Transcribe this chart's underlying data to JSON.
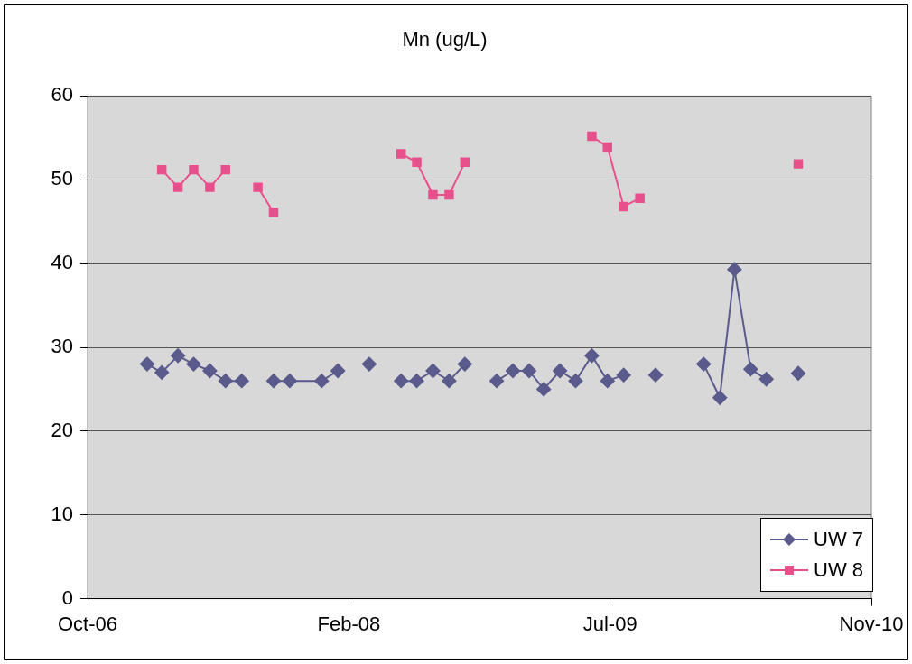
{
  "chart_data": {
    "type": "line",
    "title": "Mn (ug/L)",
    "xlim": [
      "2006-10-10",
      "2010-11-18"
    ],
    "xticks": [
      {
        "value": "2006-10-10",
        "label": "Oct-06"
      },
      {
        "value": "2008-02-22",
        "label": "Feb-08"
      },
      {
        "value": "2009-07-06",
        "label": "Jul-09"
      },
      {
        "value": "2010-11-18",
        "label": "Nov-10"
      }
    ],
    "ylim": [
      0,
      60
    ],
    "yticks": [
      0,
      10,
      20,
      30,
      40,
      50,
      60
    ],
    "grid": "y",
    "legend": "bottom right",
    "line_style": "solid",
    "series": [
      {
        "name": "UW 7",
        "color": "#5a5a8c",
        "marker": "diamond",
        "x": [
          "2007-02-01",
          "2007-03-01",
          "2007-04-01",
          "2007-05-01",
          "2007-06-01",
          "2007-07-01",
          "2007-08-01",
          "2007-09-01",
          "2007-10-01",
          "2007-11-01",
          "2008-01-01",
          "2008-02-01",
          "2008-03-01",
          "2008-04-01",
          "2008-05-01",
          "2008-06-01",
          "2008-07-01",
          "2008-08-01",
          "2008-09-01",
          "2008-10-01",
          "2008-11-01",
          "2008-12-01",
          "2009-01-01",
          "2009-02-01",
          "2009-03-01",
          "2009-04-01",
          "2009-05-01",
          "2009-06-01",
          "2009-07-01",
          "2009-08-01",
          "2009-09-01",
          "2009-10-01",
          "2009-11-01",
          "2010-01-01",
          "2010-02-01",
          "2010-03-01",
          "2010-04-01",
          "2010-05-01",
          "2010-06-01",
          "2010-07-01"
        ],
        "values": [
          28,
          27,
          29,
          28,
          27.2,
          26,
          26,
          null,
          26,
          26,
          26,
          27.2,
          null,
          28,
          null,
          26,
          26,
          27.2,
          26,
          28,
          null,
          26,
          27.2,
          27.2,
          25,
          27.2,
          26,
          29,
          26,
          26.7,
          null,
          26.7,
          null,
          28,
          24,
          39.3,
          27.4,
          26.2,
          null,
          26.9
        ]
      },
      {
        "name": "UW 8",
        "color": "#e8508c",
        "marker": "square",
        "x": [
          "2007-03-01",
          "2007-04-01",
          "2007-05-01",
          "2007-06-01",
          "2007-07-01",
          "2007-08-01",
          "2007-09-01",
          "2007-10-01",
          "2007-11-01",
          "2008-06-01",
          "2008-07-01",
          "2008-08-01",
          "2008-09-01",
          "2008-10-01",
          "2008-11-01",
          "2009-06-01",
          "2009-07-01",
          "2009-08-01",
          "2009-09-01",
          "2009-10-01",
          "2010-07-01"
        ],
        "values": [
          51.2,
          49.1,
          51.2,
          49.1,
          51.2,
          null,
          49.1,
          46.1,
          null,
          53.1,
          52.1,
          48.2,
          48.2,
          52.1,
          null,
          55.2,
          53.9,
          46.8,
          47.8,
          null,
          51.9
        ]
      }
    ]
  }
}
